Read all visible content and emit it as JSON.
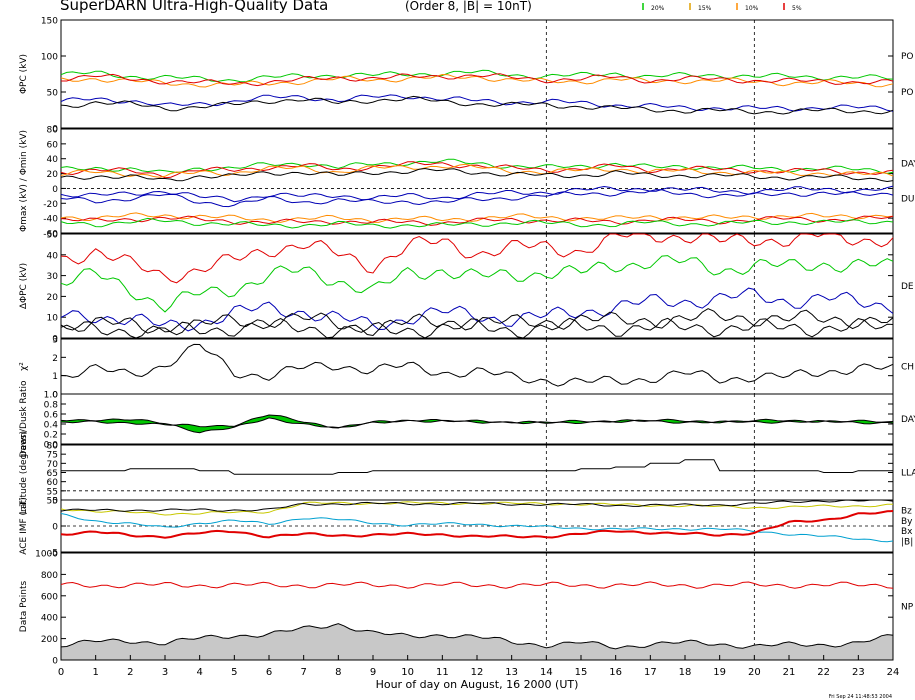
{
  "header": {
    "title": "SuperDARN Ultra-High-Quality Data",
    "subtitle": "(Order 8, |B| = 10nT)",
    "legend": [
      {
        "label": "20%",
        "color": "#00c800"
      },
      {
        "label": "15%",
        "color": "#e0a000"
      },
      {
        "label": "10%",
        "color": "#ff8c00"
      },
      {
        "label": "5%",
        "color": "#e00000"
      }
    ]
  },
  "footer": {
    "xlabel": "Hour of day on August, 16 2000 (UT)",
    "timestamp": "Fri Sep 24 11:48:53 2004"
  },
  "colors": {
    "black": "#000000",
    "blue": "#0000b4",
    "green": "#00c800",
    "red": "#e00000",
    "orange": "#ff8c00",
    "yellow": "#c8c800",
    "cyan": "#00a0d0",
    "gray": "#c8c8c8"
  },
  "chart_data": {
    "type": "line",
    "xlim": [
      0,
      24
    ],
    "xticks": [
      "0",
      "1",
      "2",
      "3",
      "4",
      "5",
      "6",
      "7",
      "8",
      "9",
      "10",
      "11",
      "12",
      "13",
      "14",
      "15",
      "16",
      "17",
      "18",
      "19",
      "20",
      "21",
      "22",
      "23",
      "24"
    ],
    "vlines": [
      14,
      20
    ],
    "panels": [
      {
        "id": "phi-pc",
        "ylabel": "ΦPC (kV)",
        "ylim": [
          0,
          150
        ],
        "yticks": [
          "150",
          "100",
          "50",
          "0"
        ],
        "right_labels": [
          "PO",
          "PO"
        ],
        "series": [
          {
            "color": "green",
            "values": [
              74,
              76,
              72,
              70,
              68,
              67,
              70,
              72,
              74,
              73,
              75,
              76,
              77,
              74,
              72,
              73,
              76,
              71,
              73,
              74,
              71,
              72,
              71,
              70,
              69
            ]
          },
          {
            "color": "orange",
            "values": [
              66,
              69,
              65,
              62,
              61,
              60,
              62,
              65,
              68,
              67,
              69,
              70,
              71,
              67,
              64,
              65,
              68,
              64,
              66,
              66,
              64,
              63,
              63,
              62,
              61
            ]
          },
          {
            "color": "red",
            "values": [
              69,
              72,
              68,
              65,
              63,
              62,
              64,
              67,
              70,
              69,
              71,
              72,
              73,
              70,
              67,
              68,
              71,
              66,
              68,
              68,
              66,
              65,
              65,
              64,
              63
            ]
          },
          {
            "color": "blue",
            "values": [
              36,
              41,
              38,
              30,
              34,
              37,
              42,
              44,
              38,
              43,
              45,
              40,
              38,
              36,
              36,
              35,
              32,
              30,
              28,
              28,
              27,
              27,
              29,
              28,
              27
            ]
          },
          {
            "color": "black",
            "values": [
              30,
              36,
              33,
              27,
              30,
              32,
              38,
              40,
              34,
              39,
              41,
              36,
              34,
              32,
              32,
              30,
              27,
              26,
              24,
              24,
              23,
              23,
              24,
              24,
              23
            ]
          }
        ]
      },
      {
        "id": "phi-max-min",
        "ylabel": "Φmax (kV) / Φmin (kV)",
        "ylim": [
          -60,
          80
        ],
        "yticks": [
          "80",
          "60",
          "40",
          "20",
          "0",
          "-20",
          "-40",
          "-60"
        ],
        "right_labels": [
          "DAY",
          "DU"
        ],
        "series": [
          {
            "color": "green",
            "values": [
              25,
              28,
              26,
              20,
              28,
              27,
              32,
              34,
              28,
              33,
              35,
              36,
              34,
              30,
              28,
              30,
              33,
              28,
              30,
              28,
              27,
              26,
              27,
              25,
              24
            ]
          },
          {
            "color": "red",
            "values": [
              22,
              25,
              23,
              18,
              25,
              24,
              29,
              31,
              25,
              30,
              32,
              33,
              31,
              27,
              25,
              27,
              30,
              25,
              27,
              25,
              24,
              23,
              24,
              22,
              21
            ]
          },
          {
            "color": "orange",
            "values": [
              19,
              22,
              20,
              16,
              22,
              21,
              26,
              28,
              22,
              27,
              29,
              30,
              28,
              24,
              22,
              24,
              27,
              22,
              24,
              22,
              21,
              20,
              21,
              19,
              18
            ]
          },
          {
            "color": "black",
            "values": [
              14,
              17,
              15,
              11,
              17,
              16,
              21,
              22,
              17,
              22,
              23,
              24,
              22,
              19,
              17,
              18,
              21,
              17,
              18,
              17,
              16,
              15,
              15,
              14,
              13
            ]
          },
          {
            "color": "blue",
            "values": [
              -8,
              -10,
              -7,
              -3,
              -12,
              -15,
              -8,
              -11,
              -9,
              -13,
              -10,
              -12,
              -8,
              -6,
              -5,
              -2,
              -1,
              0,
              -2,
              -3,
              -4,
              -2,
              0,
              -3,
              -1
            ]
          },
          {
            "color": "blue",
            "values": [
              -14,
              -17,
              -13,
              -9,
              -18,
              -22,
              -14,
              -18,
              -16,
              -19,
              -17,
              -19,
              -15,
              -12,
              -10,
              -7,
              -6,
              -5,
              -7,
              -9,
              -10,
              -7,
              -6,
              -9,
              -7
            ]
          },
          {
            "color": "orange",
            "values": [
              -38,
              -40,
              -37,
              -36,
              -38,
              -40,
              -42,
              -41,
              -40,
              -42,
              -41,
              -42,
              -40,
              -38,
              -39,
              -40,
              -41,
              -38,
              -39,
              -40,
              -38,
              -37,
              -38,
              -37,
              -36
            ]
          },
          {
            "color": "red",
            "values": [
              -42,
              -44,
              -41,
              -40,
              -42,
              -44,
              -46,
              -45,
              -44,
              -46,
              -45,
              -46,
              -44,
              -42,
              -43,
              -44,
              -45,
              -42,
              -43,
              -44,
              -42,
              -41,
              -42,
              -41,
              -40
            ]
          },
          {
            "color": "green",
            "values": [
              -46,
              -48,
              -45,
              -44,
              -46,
              -48,
              -50,
              -49,
              -48,
              -50,
              -49,
              -50,
              -48,
              -46,
              -47,
              -48,
              -49,
              -46,
              -47,
              -48,
              -46,
              -45,
              -46,
              -45,
              -44
            ]
          }
        ]
      },
      {
        "id": "delta-phi-pc",
        "ylabel": "ΔΦPC (kV)",
        "ylim": [
          0,
          50
        ],
        "yticks": [
          "50",
          "40",
          "30",
          "20",
          "10",
          "0"
        ],
        "right_labels": [
          "DE"
        ],
        "series": [
          {
            "color": "red",
            "values": [
              38,
              42,
              35,
              30,
              33,
              37,
              43,
              45,
              40,
              35,
              44,
              46,
              41,
              43,
              44,
              42,
              48,
              50,
              49,
              46,
              48,
              47,
              49,
              48,
              47
            ]
          },
          {
            "color": "green",
            "values": [
              27,
              30,
              24,
              15,
              21,
              24,
              30,
              32,
              28,
              22,
              31,
              33,
              29,
              30,
              32,
              31,
              35,
              37,
              36,
              33,
              35,
              34,
              36,
              35,
              34
            ]
          },
          {
            "color": "blue",
            "values": [
              10,
              11,
              9,
              5,
              8,
              12,
              14,
              13,
              9,
              6,
              10,
              12,
              11,
              9,
              10,
              13,
              15,
              17,
              18,
              19,
              20,
              18,
              19,
              17,
              16
            ]
          },
          {
            "color": "black",
            "values": [
              6,
              7,
              6,
              5,
              6,
              8,
              9,
              9,
              7,
              5,
              7,
              8,
              8,
              7,
              8,
              9,
              8,
              9,
              9,
              10,
              10,
              9,
              9,
              9,
              8
            ]
          },
          {
            "color": "black",
            "values": [
              4,
              4,
              4,
              3,
              4,
              5,
              5,
              5,
              4,
              3,
              4,
              5,
              5,
              4,
              5,
              5,
              5,
              5,
              5,
              5,
              5,
              5,
              5,
              5,
              5
            ]
          }
        ]
      },
      {
        "id": "chi-sq",
        "ylabel": "χ²",
        "ylim": [
          0,
          3
        ],
        "yticks": [
          "3",
          "2",
          "1",
          "0"
        ],
        "right_labels": [
          "CH"
        ],
        "series": [
          {
            "color": "black",
            "values": [
              1.0,
              1.3,
              1.1,
              1.6,
              2.6,
              1.2,
              1.0,
              1.4,
              1.6,
              1.3,
              1.5,
              1.2,
              1.2,
              0.9,
              0.8,
              0.6,
              0.7,
              0.9,
              1.1,
              0.8,
              1.0,
              0.9,
              1.2,
              1.5,
              1.3
            ]
          }
        ]
      },
      {
        "id": "dawn-dusk-ratio",
        "ylabel": "Dawn/Dusk Ratio",
        "ylim": [
          0,
          1
        ],
        "yticks": [
          "1.0",
          "0.8",
          "0.6",
          "0.4",
          "0.2",
          "0.0"
        ],
        "right_labels": [
          "DAY"
        ],
        "series": [
          {
            "color": "black",
            "values": [
              0.42,
              0.44,
              0.43,
              0.38,
              0.36,
              0.38,
              0.58,
              0.45,
              0.33,
              0.43,
              0.47,
              0.46,
              0.45,
              0.44,
              0.43,
              0.45,
              0.46,
              0.47,
              0.46,
              0.45,
              0.46,
              0.47,
              0.46,
              0.45,
              0.44
            ]
          },
          {
            "color": "black",
            "values": [
              0.48,
              0.49,
              0.48,
              0.42,
              0.24,
              0.32,
              0.52,
              0.4,
              0.3,
              0.44,
              0.47,
              0.46,
              0.45,
              0.43,
              0.42,
              0.44,
              0.45,
              0.46,
              0.44,
              0.43,
              0.44,
              0.45,
              0.44,
              0.43,
              0.43
            ]
          }
        ]
      },
      {
        "id": "latitude",
        "ylabel": "Latitude (degrees)",
        "ylim": [
          50,
          80
        ],
        "yticks": [
          "80",
          "75",
          "70",
          "65",
          "60",
          "55",
          "50"
        ],
        "right_labels": [
          "LLA"
        ],
        "series": [
          {
            "color": "black",
            "values": [
              66,
              66,
              67,
              67,
              66,
              64,
              64,
              64,
              65,
              66,
              66,
              66,
              66,
              66,
              66,
              67,
              68,
              70,
              72,
              66,
              66,
              66,
              65,
              66,
              65
            ]
          }
        ]
      },
      {
        "id": "ace-imf",
        "ylabel": "ACE IMF (nT)",
        "ylim": [
          -5,
          5
        ],
        "yticks": [
          "5",
          "0",
          "-5"
        ],
        "right_labels": [
          "Bz",
          "By",
          "Bx",
          "|B|"
        ],
        "series": [
          {
            "color": "yellow",
            "values": [
              3.4,
              2.8,
              2.6,
              2.4,
              2.4,
              2.6,
              2.8,
              4.3,
              4.4,
              4.4,
              4.4,
              4.4,
              4.4,
              4.3,
              4.3,
              4.2,
              4.1,
              4.0,
              3.9,
              3.7,
              3.6,
              3.6,
              3.8,
              3.9,
              4.0
            ]
          },
          {
            "color": "black",
            "values": [
              3.0,
              3.0,
              3.1,
              3.0,
              3.1,
              3.1,
              3.1,
              4.2,
              4.3,
              4.3,
              4.3,
              4.3,
              4.3,
              4.2,
              4.2,
              4.1,
              4.0,
              4.0,
              4.0,
              4.1,
              4.3,
              4.6,
              4.9,
              4.8,
              4.9
            ]
          },
          {
            "color": "cyan",
            "values": [
              2.2,
              1.0,
              0.4,
              -0.3,
              0.6,
              1.0,
              0.4,
              1.6,
              1.2,
              0.6,
              0.2,
              0.4,
              0.4,
              0.0,
              -0.2,
              -0.4,
              -0.6,
              -0.6,
              -0.5,
              -0.6,
              -1.0,
              -1.5,
              -2.0,
              -2.5,
              -2.8
            ]
          },
          {
            "color": "red",
            "values": [
              -1.5,
              -1.2,
              -1.8,
              -2.0,
              -1.4,
              -1.0,
              -2.0,
              -1.6,
              -1.8,
              -1.7,
              -1.6,
              -1.6,
              -2.0,
              -2.1,
              -2.0,
              -1.5,
              -1.0,
              -1.2,
              -1.5,
              -1.8,
              -1.2,
              0.6,
              1.1,
              2.4,
              2.6
            ]
          }
        ]
      },
      {
        "id": "data-points",
        "ylabel": "Data Points",
        "ylim": [
          0,
          1000
        ],
        "yticks": [
          "1000",
          "800",
          "600",
          "400",
          "200",
          "0"
        ],
        "right_labels": [
          "NP"
        ],
        "series": [
          {
            "color": "black",
            "values": [
              140,
              170,
              180,
              160,
              200,
              230,
              240,
              290,
              340,
              250,
              220,
              240,
              210,
              170,
              140,
              160,
              120,
              150,
              160,
              150,
              130,
              140,
              145,
              160,
              220
            ]
          },
          {
            "color": "red",
            "values": [
              700,
              700,
              700,
              700,
              700,
              700,
              700,
              700,
              700,
              700,
              700,
              700,
              700,
              700,
              700,
              700,
              700,
              700,
              700,
              700,
              700,
              700,
              700,
              700,
              700
            ]
          }
        ]
      }
    ]
  }
}
